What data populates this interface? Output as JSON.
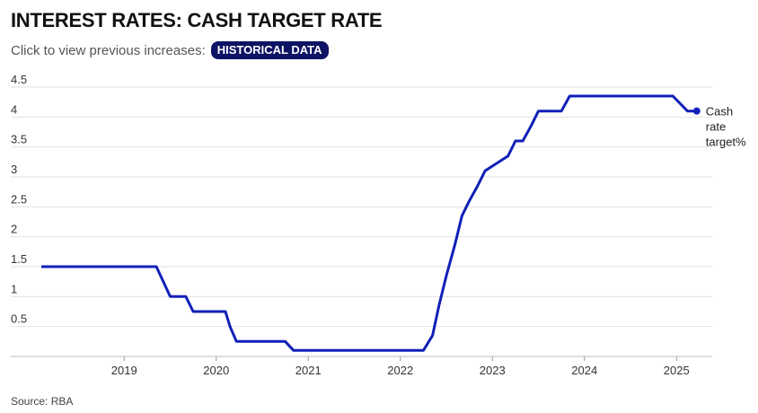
{
  "header": {
    "title": "INTEREST RATES: CASH TARGET RATE",
    "subtitle_text": "Click to view previous increases:",
    "historical_button": "HISTORICAL DATA"
  },
  "footer": {
    "source": "Source: RBA"
  },
  "colors": {
    "line": "#1020b8",
    "button_bg": "#0d1464",
    "grid": "#e2e2e2"
  },
  "chart_data": {
    "type": "line",
    "title": "INTEREST RATES: CASH TARGET RATE",
    "xlabel": "",
    "ylabel": "",
    "ylim": [
      0,
      4.5
    ],
    "xlim": [
      2018.1,
      2025.3
    ],
    "y_ticks": [
      "0.5",
      "1",
      "1.5",
      "2",
      "2.5",
      "3",
      "3.5",
      "4",
      "4.5"
    ],
    "x_ticks": [
      "2019",
      "2020",
      "2021",
      "2022",
      "2023",
      "2024",
      "2025"
    ],
    "grid": true,
    "end_label": [
      "Cash",
      "rate",
      "target%"
    ],
    "series": [
      {
        "name": "Cash rate target%",
        "x": [
          2018.1,
          2019.35,
          2019.5,
          2019.67,
          2019.75,
          2020.1,
          2020.15,
          2020.22,
          2020.75,
          2020.84,
          2022.25,
          2022.35,
          2022.42,
          2022.5,
          2022.59,
          2022.67,
          2022.75,
          2022.84,
          2022.92,
          2023.17,
          2023.25,
          2023.33,
          2023.42,
          2023.5,
          2023.75,
          2023.84,
          2024.96,
          2025.12,
          2025.22
        ],
        "values": [
          1.5,
          1.5,
          1.0,
          1.0,
          0.75,
          0.75,
          0.5,
          0.25,
          0.25,
          0.1,
          0.1,
          0.35,
          0.85,
          1.35,
          1.85,
          2.35,
          2.6,
          2.85,
          3.1,
          3.35,
          3.6,
          3.6,
          3.85,
          4.1,
          4.1,
          4.35,
          4.35,
          4.1,
          4.1
        ]
      }
    ]
  }
}
